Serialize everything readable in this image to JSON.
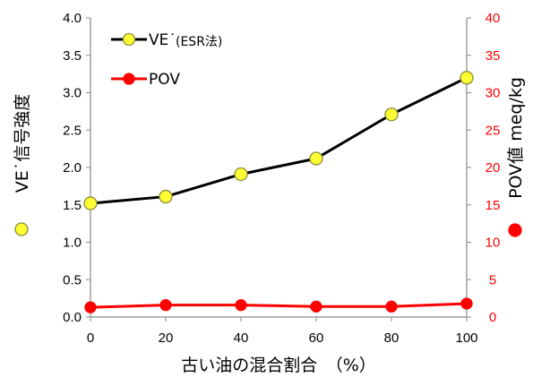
{
  "chart_data": {
    "type": "line",
    "x": [
      0,
      20,
      40,
      60,
      80,
      100
    ],
    "xlabel": "古い油の混合割合　（%）",
    "xlim": [
      0,
      100
    ],
    "x_ticks": [
      "0",
      "20",
      "40",
      "60",
      "80",
      "100"
    ],
    "y_left": {
      "label": "VE˙信号強度",
      "lim": [
        0,
        4.0
      ],
      "ticks": [
        "0.0",
        "0.5",
        "1.0",
        "1.5",
        "2.0",
        "2.5",
        "3.0",
        "3.5",
        "4.0"
      ],
      "color": "#000000"
    },
    "y_right": {
      "label": "POV値 meq/kg",
      "lim": [
        0,
        40
      ],
      "ticks": [
        "0",
        "5",
        "10",
        "15",
        "20",
        "25",
        "30",
        "35",
        "40"
      ],
      "color": "#ff0000"
    },
    "series": [
      {
        "name": "VE˙",
        "name_suffix": "(ESR法)",
        "axis": "left",
        "values": [
          1.52,
          1.61,
          1.91,
          2.12,
          2.71,
          3.2
        ],
        "line_color": "#000000",
        "marker_fill": "#ffff33",
        "marker_stroke": "#8a8a3a"
      },
      {
        "name": "POV",
        "axis": "right",
        "values": [
          1.3,
          1.6,
          1.6,
          1.4,
          1.4,
          1.8
        ],
        "line_color": "#ff0000",
        "marker_fill": "#ff0000",
        "marker_stroke": "#ff0000"
      }
    ],
    "legend_position": "top-left",
    "grid": false
  }
}
